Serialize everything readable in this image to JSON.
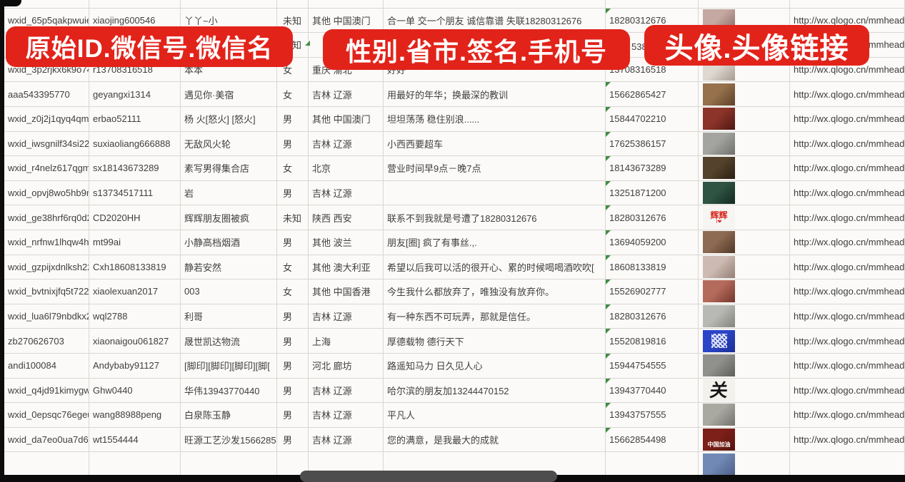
{
  "banners": {
    "left": "原始ID.微信号.微信名",
    "middle": "性别.省市.签名.手机号",
    "right": "头像.头像链接",
    "color": "#e2231a"
  },
  "fragments": {
    "row2_phone": "5386"
  },
  "url_text": "http://wx.qlogo.cn/mmhead",
  "rows": [
    {
      "id": "wxid_65p5qakpwuie22",
      "wxno": "xiaojing600546",
      "name": "丫丫~小",
      "gender": "未知",
      "province": "其他 中国澳门",
      "signature": "合一单 交一个朋友 诚信靠谱 失联18280312676",
      "phone": "18280312676",
      "url": "http://wx.qlogo.cn/mmhead",
      "avatar": {
        "name": "woman-selfie-avatar",
        "color": "#c5a8a2",
        "color2": "#8a6b66"
      }
    },
    {
      "id": "wxid_h1xj048al3ok22",
      "wxno": "",
      "name": "CD麻辣麻将",
      "gender": "未知",
      "province": "",
      "signature": "",
      "phone": "",
      "url": "http://wx.qlogo.cn/mmhead",
      "avatar": {
        "name": "hidden-avatar",
        "color": "#7189b5",
        "color2": "#4c5f87"
      }
    },
    {
      "id": "wxid_3p2rjkx6k9o741",
      "wxno": "r13708316518",
      "name": "本本",
      "gender": "女",
      "province": "重庆 渝北",
      "signature": "好好",
      "phone": "13708316518",
      "url": "http://wx.qlogo.cn/mmhead",
      "avatar": {
        "name": "woman-white-top-avatar",
        "color": "#ddd8d0",
        "color2": "#a79c90"
      }
    },
    {
      "id": "aaa543395770",
      "wxno": "geyangxi1314",
      "name": "遇见你·美宿",
      "gender": "女",
      "province": "吉林 辽源",
      "signature": "用最好的年华；换最深的教训",
      "phone": "15662865427",
      "url": "http://wx.qlogo.cn/mmhead",
      "avatar": {
        "name": "sepia-figures-avatar",
        "color": "#96714c",
        "color2": "#5d4228"
      }
    },
    {
      "id": "wxid_z0j2j1qyq4qm22",
      "wxno": "erbao52111",
      "name": "杨 火[怒火] [怒火]",
      "gender": "男",
      "province": "其他 中国澳门",
      "signature": "坦坦荡荡 稳住别浪......",
      "phone": "15844702210",
      "url": "http://wx.qlogo.cn/mmhead",
      "avatar": {
        "name": "red-figures-avatar",
        "color": "#8c342a",
        "color2": "#4f1712"
      }
    },
    {
      "id": "wxid_iwsgnilf34si22",
      "wxno": "suxiaoliang666888",
      "name": "无敌风火轮",
      "gender": "男",
      "province": "吉林 辽源",
      "signature": "小西西要超车",
      "phone": "17625386157",
      "url": "http://wx.qlogo.cn/mmhead",
      "avatar": {
        "name": "person-in-car-avatar",
        "color": "#a3a3a0",
        "color2": "#6e6e6b"
      }
    },
    {
      "id": "wxid_r4nelz617qgm12",
      "wxno": "sx18143673289",
      "name": "素写男得集合店",
      "gender": "女",
      "province": "北京",
      "signature": "营业时间早9点－晚7点",
      "phone": "18143673289",
      "url": "http://wx.qlogo.cn/mmhead",
      "avatar": {
        "name": "storefront-avatar",
        "color": "#55422c",
        "color2": "#2a1f12"
      }
    },
    {
      "id": "wxid_opvj8wo5hb9r22",
      "wxno": "s13734517111",
      "name": "岩",
      "gender": "男",
      "province": "吉林 辽源",
      "signature": "",
      "phone": "13251871200",
      "url": "http://wx.qlogo.cn/mmhead",
      "avatar": {
        "name": "green-poster-avatar",
        "color": "#2f5444",
        "color2": "#122a20"
      }
    },
    {
      "id": "wxid_ge38hrf6rq0d22",
      "wxno": "CD2020HH",
      "name": "辉辉朋友圈被疯",
      "gender": "未知",
      "province": "陕西 西安",
      "signature": "联系不到我就是号遭了18280312676",
      "phone": "18280312676",
      "url": "http://wx.qlogo.cn/mmhead",
      "avatar": {
        "name": "huihui-text-avatar",
        "type": "huihui",
        "color": "#f6f5f2",
        "label": "辉辉",
        "sublabel": "I❤",
        "label_color": "#d8281e"
      }
    },
    {
      "id": "wxid_nrfnw1lhqw4h22",
      "wxno": "mt99ai",
      "name": "小静高档烟酒",
      "gender": "男",
      "province": "其他 波兰",
      "signature": "朋友[圈] 疯了有事丝.,.",
      "phone": "13694059200",
      "url": "http://wx.qlogo.cn/mmhead",
      "avatar": {
        "name": "woman-sunglasses-avatar",
        "color": "#8d6a52",
        "color2": "#513828"
      }
    },
    {
      "id": "wxid_gzpijxdnlksh22",
      "wxno": "Cxh18608133819",
      "name": "静若安然",
      "gender": "女",
      "province": "其他 澳大利亚",
      "signature": "希望以后我可以活的很开心、累的时候喝喝酒吹吹[",
      "phone": "18608133819",
      "url": "http://wx.qlogo.cn/mmhead",
      "avatar": {
        "name": "woman-portrait-avatar",
        "color": "#cdbab2",
        "color2": "#937f74"
      }
    },
    {
      "id": "wxid_bvtnixjfq5t722",
      "wxno": "xiaolexuan2017",
      "name": "003",
      "gender": "女",
      "province": "其他 中国香港",
      "signature": "今生我什么都放弃了，唯独没有放弃你。",
      "phone": "15526902777",
      "url": "http://wx.qlogo.cn/mmhead",
      "avatar": {
        "name": "red-hair-woman-avatar",
        "color": "#b56b5c",
        "color2": "#74362c"
      }
    },
    {
      "id": "wxid_lua6l79nbdkx21",
      "wxno": "wql2788",
      "name": "利哥",
      "gender": "男",
      "province": "吉林 辽源",
      "signature": "有一种东西不可玩弄，那就是信任。",
      "phone": "18280312676",
      "url": "http://wx.qlogo.cn/mmhead",
      "avatar": {
        "name": "white-headscarf-avatar",
        "color": "#b8b8b4",
        "color2": "#84847e"
      }
    },
    {
      "id": "zb270626703",
      "wxno": "xiaonaigou061827",
      "name": "晟世凯达物流",
      "gender": "男",
      "province": "上海",
      "signature": "厚德载物 德行天下",
      "phone": "15520819816",
      "url": "http://wx.qlogo.cn/mmhead",
      "avatar": {
        "name": "qr-code-avatar",
        "type": "qr",
        "color": "#2b45c8",
        "color2": "#1a2f96"
      }
    },
    {
      "id": "andi100084",
      "wxno": "Andybaby91127",
      "name": "[脚印][脚印][脚印][脚[",
      "gender": "男",
      "province": "河北 廊坊",
      "signature": "路遥知马力 日久见人心",
      "phone": "15944754555",
      "url": "http://wx.qlogo.cn/mmhead",
      "avatar": {
        "name": "gray-scene-avatar",
        "color": "#90908c",
        "color2": "#5e5e5a"
      }
    },
    {
      "id": "wxid_q4jd91kimygw21",
      "wxno": "Ghw0440",
      "name": "华伟13943770440",
      "gender": "男",
      "province": "吉林 辽源",
      "signature": "哈尔滨的朋友加13244470152",
      "phone": "13943770440",
      "url": "http://wx.qlogo.cn/mmhead",
      "avatar": {
        "name": "calligraphy-avatar",
        "type": "guan",
        "color": "#f2f1ec",
        "label": "关",
        "label_color": "#171717"
      }
    },
    {
      "id": "wxid_0epsqc76egeu22",
      "wxno": "wang88988peng",
      "name": "白泉陈玉静",
      "gender": "男",
      "province": "吉林 辽源",
      "signature": "平凡人",
      "phone": "13943757555",
      "url": "http://wx.qlogo.cn/mmhead",
      "avatar": {
        "name": "field-person-avatar",
        "color": "#a9a9a1",
        "color2": "#73736c"
      }
    },
    {
      "id": "wxid_da7eo0ua7d6z22",
      "wxno": "wt1554444",
      "name": "旺源工艺沙发15662854",
      "gender": "男",
      "province": "吉林 辽源",
      "signature": "您的满意，是我最大的成就",
      "phone": "15662854498",
      "url": "http://wx.qlogo.cn/mmhead",
      "avatar": {
        "name": "china-text-avatar",
        "type": "china",
        "color": "#7c2019",
        "color2": "#56120d",
        "label": "中国加油",
        "label_color": "#ffffff"
      }
    }
  ],
  "partial_row": {
    "avatar": {
      "name": "partial-blue-avatar",
      "color": "#7189b5",
      "color2": "#4c5f87"
    }
  }
}
